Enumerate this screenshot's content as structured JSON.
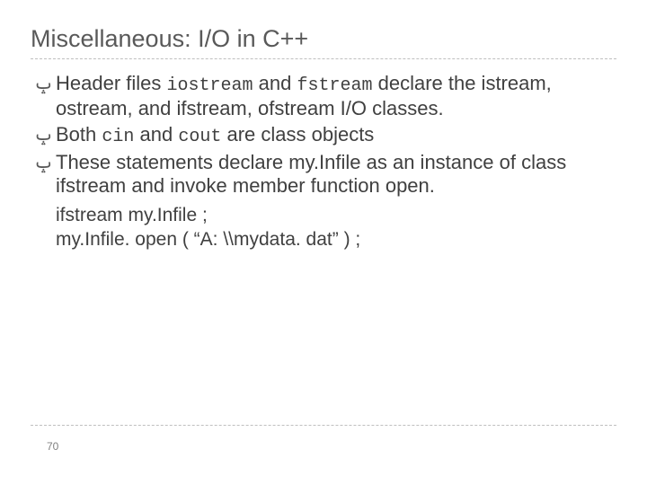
{
  "title": "Miscellaneous: I/O in C++",
  "bullet_marker": "ݒ",
  "bullets": [
    {
      "parts": [
        {
          "text": "Header files ",
          "mono": false
        },
        {
          "text": "iostream",
          "mono": true
        },
        {
          "text": " and ",
          "mono": false
        },
        {
          "text": "fstream",
          "mono": true
        },
        {
          "text": " declare the istream, ostream, and ifstream, ofstream I/O classes.",
          "mono": false
        }
      ]
    },
    {
      "parts": [
        {
          "text": "Both ",
          "mono": false
        },
        {
          "text": "cin",
          "mono": true
        },
        {
          "text": " and ",
          "mono": false
        },
        {
          "text": "cout",
          "mono": true
        },
        {
          "text": " are class objects",
          "mono": false
        }
      ]
    },
    {
      "parts": [
        {
          "text": "These statements declare my.Infile as an instance of class ifstream and invoke member function open.",
          "mono": false
        }
      ]
    }
  ],
  "code_lines": [
    "ifstream  my.Infile ;",
    "my.Infile. open ( “A: \\\\mydata. dat” ) ;"
  ],
  "page_number": "70",
  "colors": {
    "background": "#ffffff",
    "title_color": "#595959",
    "body_color": "#404040",
    "rule_color": "#bfbfbf",
    "pagenum_color": "#808080"
  },
  "fonts": {
    "title_size_pt": 27,
    "body_size_pt": 22,
    "mono_size_pt": 20,
    "pagenum_size_pt": 12
  }
}
